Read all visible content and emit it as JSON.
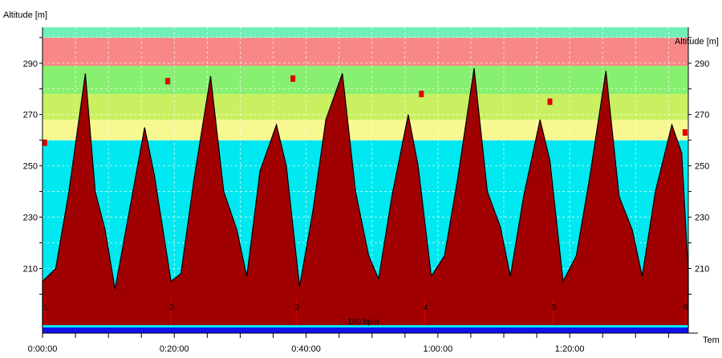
{
  "chart_data": {
    "type": "area",
    "ylabel_left": "Altitude [m]",
    "ylabel_right": "Altitude [m]",
    "xlabel": "Tem",
    "x_unit": "h:mm:ss",
    "xlim": [
      "0:00:00",
      "1:38:00"
    ],
    "ylim": [
      187,
      304
    ],
    "y_ticks": [
      210,
      230,
      250,
      270,
      290
    ],
    "x_tick_labels": [
      "0:00:00",
      "0:20:00",
      "0:40:00",
      "1:00:00",
      "1:20:00"
    ],
    "grid": true,
    "bands": [
      {
        "from": 187,
        "to": 260,
        "color": "#00e8f0"
      },
      {
        "from": 260,
        "to": 268,
        "color": "#f8f890"
      },
      {
        "from": 268,
        "to": 278,
        "color": "#c8f060"
      },
      {
        "from": 278,
        "to": 289,
        "color": "#88f070"
      },
      {
        "from": 289,
        "to": 300,
        "color": "#f88888"
      },
      {
        "from": 300,
        "to": 304,
        "color": "#70f0b8"
      }
    ],
    "series": [
      {
        "color": "#a00000",
        "x": [
          "0:00:00",
          "0:02:00",
          "0:04:00",
          "0:06:30",
          "0:08:00",
          "0:09:30",
          "0:11:00",
          "0:13:00",
          "0:15:30",
          "0:17:00",
          "0:19:30",
          "0:21:00",
          "0:23:00",
          "0:25:30",
          "0:27:30",
          "0:29:30",
          "0:31:00",
          "0:33:00",
          "0:35:30",
          "0:37:00",
          "0:39:00",
          "0:41:00",
          "0:43:00",
          "0:45:30",
          "0:47:30",
          "0:49:30",
          "0:51:00",
          "0:53:00",
          "0:55:30",
          "0:57:00",
          "0:59:00",
          "1:01:00",
          "1:03:00",
          "1:05:30",
          "1:07:30",
          "1:09:30",
          "1:11:00",
          "1:13:00",
          "1:15:30",
          "1:17:00",
          "1:19:00",
          "1:21:00",
          "1:23:00",
          "1:25:30",
          "1:27:30",
          "1:29:30",
          "1:31:00",
          "1:33:00",
          "1:35:30",
          "1:37:00",
          "1:38:00"
        ],
        "y": [
          205,
          210,
          240,
          286,
          240,
          225,
          202,
          230,
          265,
          246,
          205,
          208,
          245,
          285,
          240,
          225,
          207,
          248,
          266,
          250,
          203,
          232,
          268,
          286,
          240,
          215,
          206,
          238,
          270,
          250,
          207,
          215,
          245,
          288,
          240,
          226,
          207,
          238,
          268,
          252,
          205,
          215,
          245,
          287,
          238,
          225,
          207,
          240,
          266,
          255,
          208
        ]
      }
    ],
    "markers": [
      {
        "x": "0:00:20",
        "y": 259
      },
      {
        "x": "0:19:00",
        "y": 283
      },
      {
        "x": "0:38:00",
        "y": 284
      },
      {
        "x": "0:57:30",
        "y": 278
      },
      {
        "x": "1:17:00",
        "y": 275
      },
      {
        "x": "1:37:30",
        "y": 263
      }
    ],
    "lap_labels": [
      "1",
      "2",
      "3",
      "4",
      "5",
      "6"
    ],
    "lap_times": [
      "0:00:20",
      "0:19:30",
      "0:38:30",
      "0:58:00",
      "1:17:30",
      "1:37:30"
    ],
    "bottom_label": "180 bpm"
  }
}
